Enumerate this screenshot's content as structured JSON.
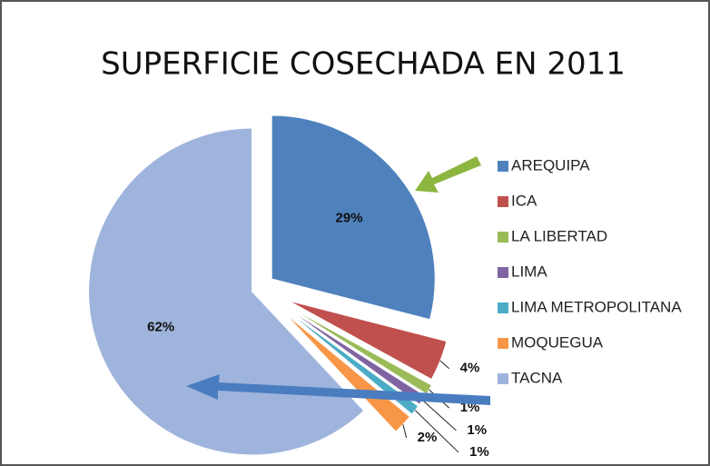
{
  "chart_data": {
    "type": "pie",
    "title": "SUPERFICIE COSECHADA EN 2011",
    "categories": [
      "AREQUIPA",
      "ICA",
      "LA LIBERTAD",
      "LIMA",
      "LIMA METROPOLITANA",
      "MOQUEGUA",
      "TACNA"
    ],
    "values": [
      29,
      4,
      1,
      1,
      1,
      2,
      62
    ],
    "value_labels": [
      "29%",
      "4%",
      "1%",
      "1%",
      "1%",
      "2%",
      "62%"
    ],
    "colors": [
      "#4f81bd",
      "#c0504d",
      "#9bbb59",
      "#8064a2",
      "#4bacc6",
      "#f79646",
      "#9fb4dc"
    ],
    "legend": "right"
  }
}
